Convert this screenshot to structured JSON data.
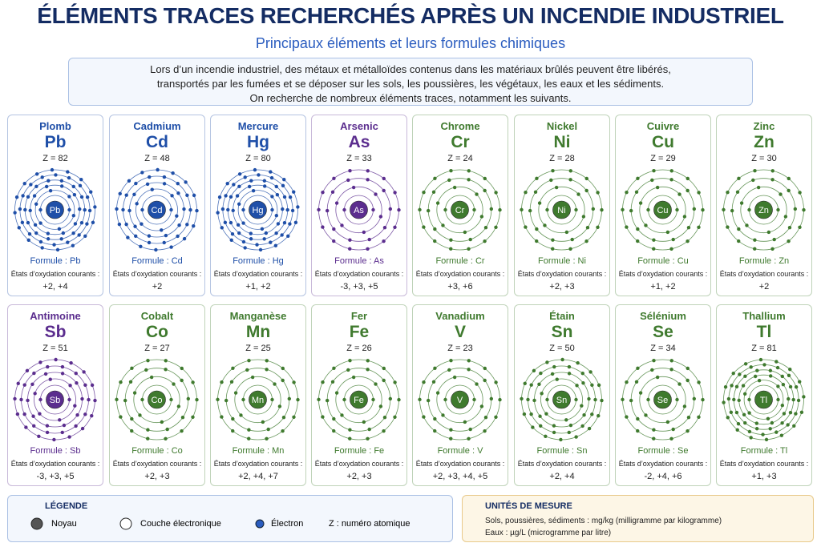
{
  "header": {
    "title": "ÉLÉMENTS TRACES RECHERCHÉS APRÈS UN INCENDIE INDUSTRIEL",
    "subtitle": "Principaux éléments et leurs formules chimiques"
  },
  "intro": [
    "Lors d’un incendie industriel, des métaux et métalloïdes contenus dans les matériaux brûlés peuvent être libérés,",
    "transportés par les fumées et se déposer sur les sols, les poussières, les végétaux, les eaux et les sédiments.",
    "On recherche de nombreux éléments traces, notamment les suivants."
  ],
  "oxidation_label": "États d’oxydation courants :",
  "elements": [
    {
      "name": "Plomb",
      "symbol": "Pb",
      "z": "Z = 82",
      "formula": "Formule : Pb",
      "states": "+2, +4",
      "color": "#1f4fa8"
    },
    {
      "name": "Cadmium",
      "symbol": "Cd",
      "z": "Z = 48",
      "formula": "Formule : Cd",
      "states": "+2",
      "color": "#1f4fa8"
    },
    {
      "name": "Mercure",
      "symbol": "Hg",
      "z": "Z = 80",
      "formula": "Formule : Hg",
      "states": "+1, +2",
      "color": "#1f4fa8"
    },
    {
      "name": "Arsenic",
      "symbol": "As",
      "z": "Z = 33",
      "formula": "Formule : As",
      "states": "-3, +3, +5",
      "color": "#5b2d8e"
    },
    {
      "name": "Chrome",
      "symbol": "Cr",
      "z": "Z = 24",
      "formula": "Formule : Cr",
      "states": "+3, +6",
      "color": "#3f7a2e"
    },
    {
      "name": "Nickel",
      "symbol": "Ni",
      "z": "Z = 28",
      "formula": "Formule : Ni",
      "states": "+2, +3",
      "color": "#3f7a2e"
    },
    {
      "name": "Cuivre",
      "symbol": "Cu",
      "z": "Z = 29",
      "formula": "Formule : Cu",
      "states": "+1, +2",
      "color": "#3f7a2e"
    },
    {
      "name": "Zinc",
      "symbol": "Zn",
      "z": "Z = 30",
      "formula": "Formule : Zn",
      "states": "+2",
      "color": "#3f7a2e"
    },
    {
      "name": "Antimoine",
      "symbol": "Sb",
      "z": "Z = 51",
      "formula": "Formule : Sb",
      "states": "-3, +3, +5",
      "color": "#5b2d8e"
    },
    {
      "name": "Cobalt",
      "symbol": "Co",
      "z": "Z = 27",
      "formula": "Formule : Co",
      "states": "+2, +3",
      "color": "#3f7a2e"
    },
    {
      "name": "Manganèse",
      "symbol": "Mn",
      "z": "Z = 25",
      "formula": "Formule : Mn",
      "states": "+2, +4, +7",
      "color": "#3f7a2e"
    },
    {
      "name": "Fer",
      "symbol": "Fe",
      "z": "Z = 26",
      "formula": "Formule : Fe",
      "states": "+2, +3",
      "color": "#3f7a2e"
    },
    {
      "name": "Vanadium",
      "symbol": "V",
      "z": "Z = 23",
      "formula": "Formule : V",
      "states": "+2, +3, +4, +5",
      "color": "#3f7a2e"
    },
    {
      "name": "Étain",
      "symbol": "Sn",
      "z": "Z = 50",
      "formula": "Formule : Sn",
      "states": "+2, +4",
      "color": "#3f7a2e"
    },
    {
      "name": "Sélénium",
      "symbol": "Se",
      "z": "Z = 34",
      "formula": "Formule : Se",
      "states": "-2, +4, +6",
      "color": "#3f7a2e"
    },
    {
      "name": "Thallium",
      "symbol": "Tl",
      "z": "Z = 81",
      "formula": "Formule : Tl",
      "states": "+1, +3",
      "color": "#3f7a2e"
    }
  ],
  "legend": {
    "title": "LÉGENDE",
    "items": [
      "Noyau",
      "Couche électronique",
      "Électron",
      "Z : numéro atomique"
    ]
  },
  "units": {
    "title": "UNITÉS DE MESURE",
    "lines": [
      "Sols, poussières, sédiments : mg/kg (milligramme par kilogramme)",
      "Eaux : µg/L (microgramme par litre)"
    ]
  }
}
